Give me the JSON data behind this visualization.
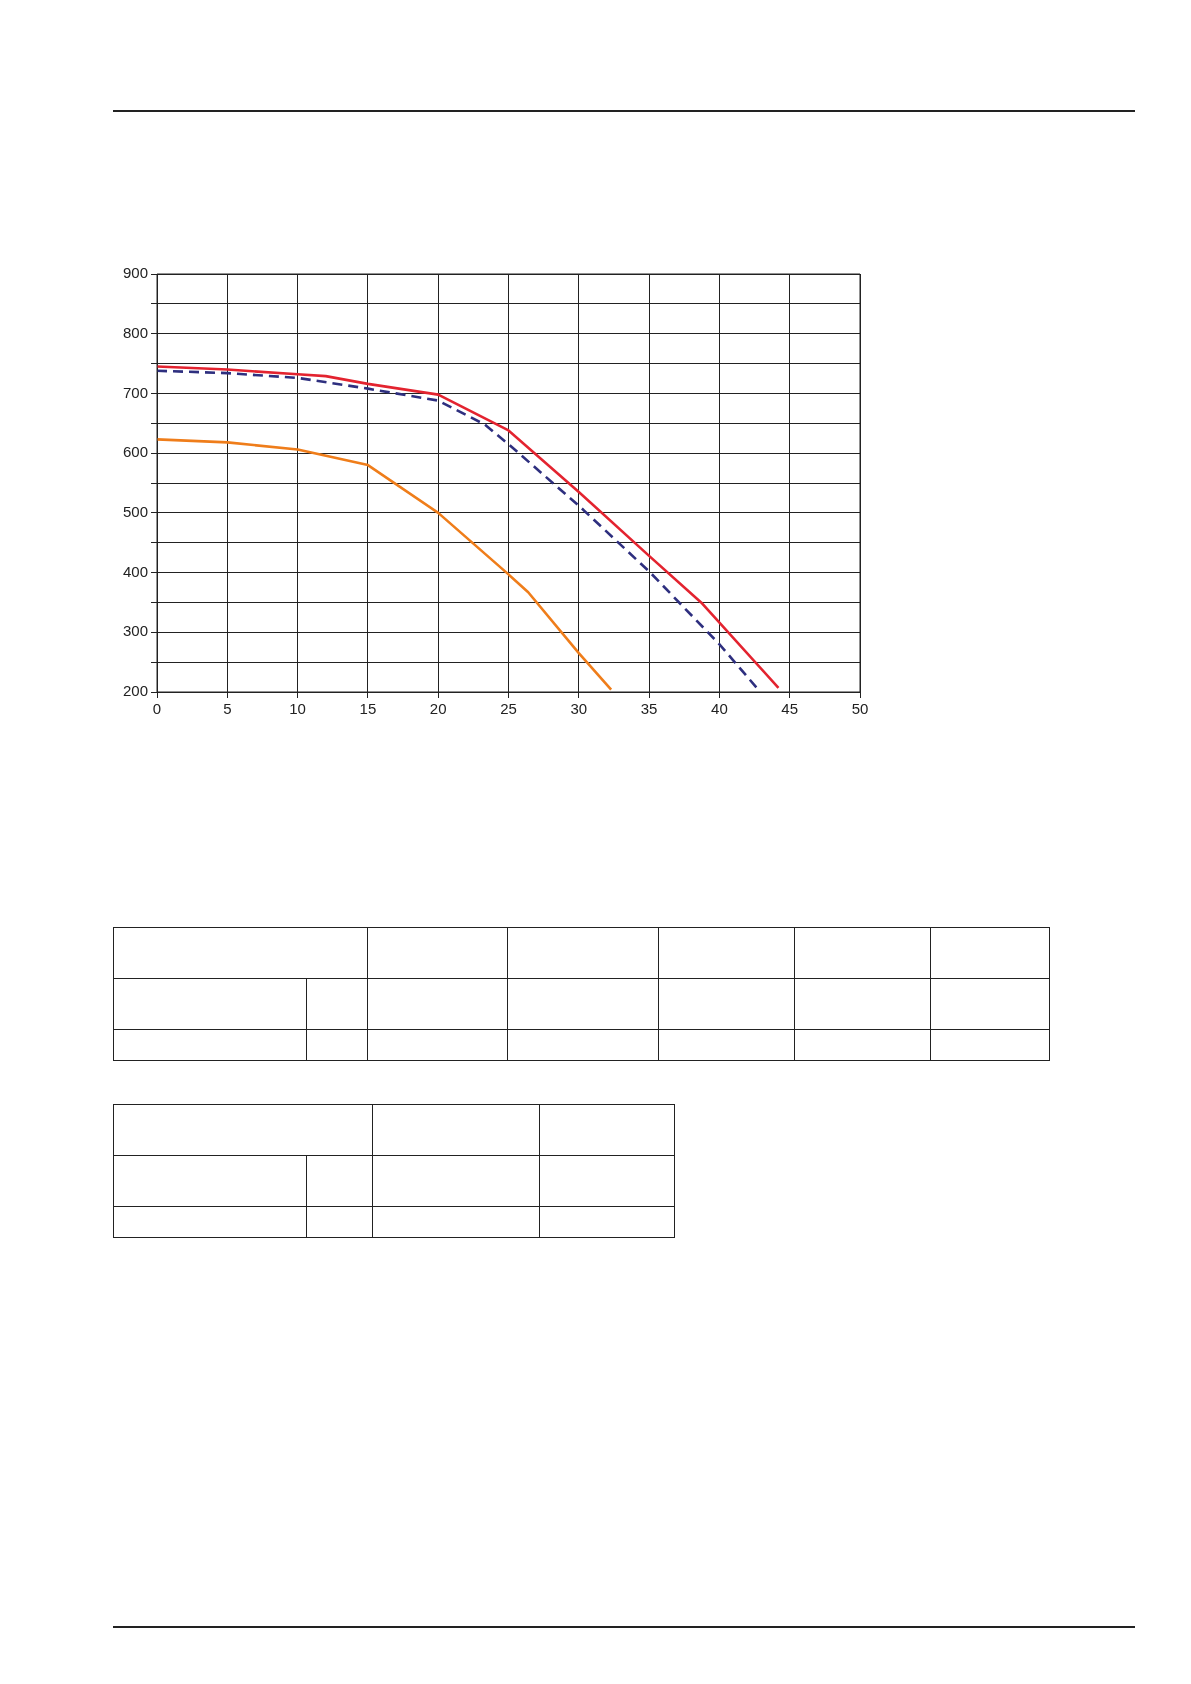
{
  "chart_data": {
    "type": "line",
    "series": [
      {
        "color": "#e3232f",
        "line_style": "solid",
        "x": [
          0,
          5,
          10,
          12,
          15,
          20,
          25,
          30,
          35,
          38.7,
          44.2
        ],
        "values": [
          745,
          740,
          732,
          729,
          716,
          698,
          638,
          535,
          428,
          350,
          207
        ]
      },
      {
        "color": "#2e2f7f",
        "line_style": "dashed",
        "x": [
          0,
          5,
          10,
          15,
          20,
          23.3,
          25,
          30,
          35,
          40,
          42.8
        ],
        "values": [
          738,
          734,
          726,
          708,
          688,
          648,
          615,
          512,
          402,
          280,
          203
        ]
      },
      {
        "color": "#ef7d1a",
        "line_style": "solid",
        "x": [
          0,
          5,
          10,
          15,
          20,
          25,
          26.4,
          30,
          32.3
        ],
        "values": [
          623,
          618,
          606,
          580,
          500,
          397,
          367,
          265,
          204
        ]
      }
    ],
    "xlim": [
      0,
      50
    ],
    "xticks": [
      0,
      5,
      10,
      15,
      20,
      25,
      30,
      35,
      40,
      45,
      50
    ],
    "ylim": [
      200,
      900
    ],
    "yticks": [
      200,
      {
        "value": 250,
        "label": null
      },
      300,
      {
        "value": 350,
        "label": null
      },
      400,
      {
        "value": 450,
        "label": null
      },
      500,
      {
        "value": 550,
        "label": null
      },
      600,
      {
        "value": 650,
        "label": null
      },
      700,
      {
        "value": 750,
        "label": null
      },
      800,
      {
        "value": 850,
        "label": null
      },
      900
    ],
    "grid": true,
    "legend": false,
    "marker": "none"
  }
}
